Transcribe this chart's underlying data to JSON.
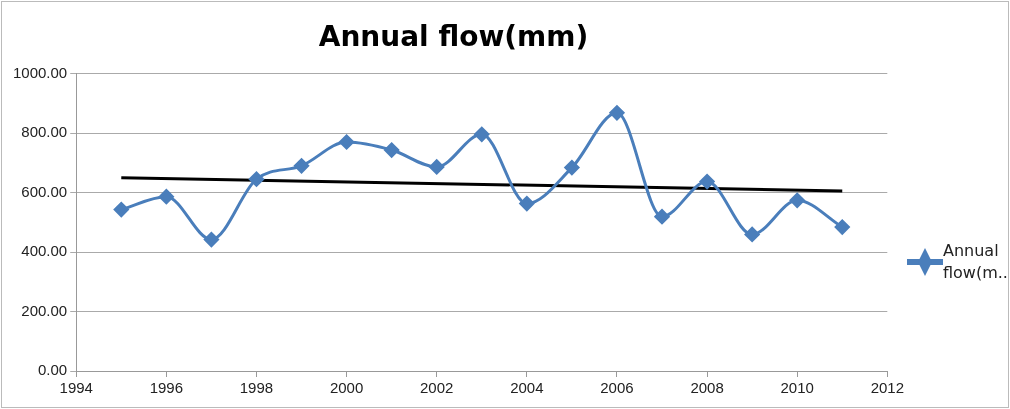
{
  "chart_data": {
    "type": "line",
    "title": "Annual flow(mm)",
    "x": [
      1995,
      1996,
      1997,
      1998,
      1999,
      2000,
      2001,
      2002,
      2003,
      2004,
      2005,
      2006,
      2007,
      2008,
      2009,
      2010,
      2011
    ],
    "series": [
      {
        "name": "Annual flow(m..",
        "color": "#4a7ebb",
        "values": [
          543,
          586,
          442,
          645,
          690,
          770,
          743,
          686,
          796,
          563,
          684,
          868,
          519,
          637,
          459,
          574,
          484
        ]
      },
      {
        "type": "line",
        "color": "#000000",
        "marker": "none",
        "x": [
          1995,
          2011
        ],
        "values": [
          650,
          605
        ]
      }
    ],
    "xlim": [
      1994,
      2012
    ],
    "xticks": [
      1994,
      1996,
      1998,
      2000,
      2002,
      2004,
      2006,
      2008,
      2010,
      2012
    ],
    "ylim": [
      0,
      1000
    ],
    "yticks": [
      {
        "value": 0,
        "label": "0.00"
      },
      {
        "value": 200,
        "label": "200.00"
      },
      {
        "value": 400,
        "label": "400.00"
      },
      {
        "value": 600,
        "label": "600.00"
      },
      {
        "value": 800,
        "label": "800.00"
      },
      {
        "value": 1000,
        "label": "1000.00"
      }
    ],
    "grid": "y",
    "legend": "right",
    "marker": "diamond"
  }
}
